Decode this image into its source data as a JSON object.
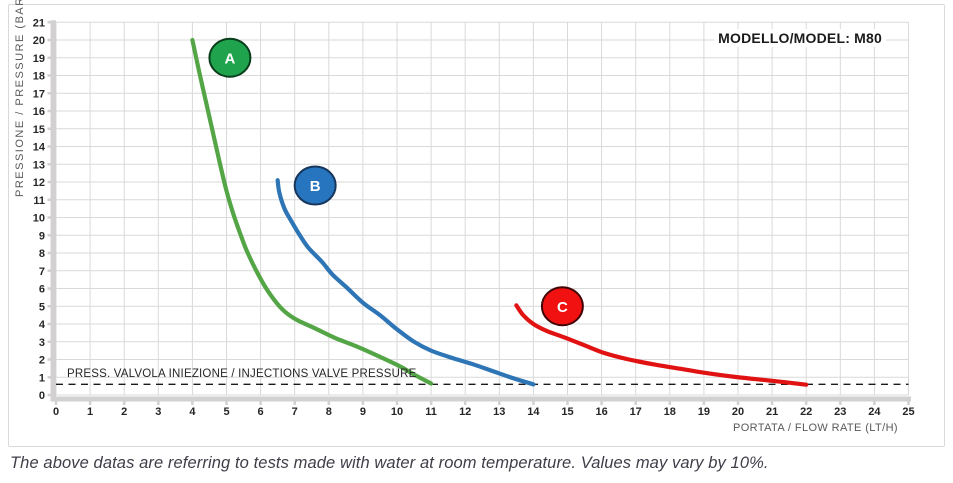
{
  "caption": "The above datas are referring to tests made with water at room temperature. Values may vary by 10%.",
  "colors": {
    "grid": "#d9d9d9",
    "axis_band": "#d2d0d0",
    "tick_text": "#262626",
    "axis_title_text": "#595959",
    "panel_border": "#d9d9d9",
    "reference_line": "#1a1a1a"
  },
  "chart_data": {
    "type": "line",
    "title": "MODELLO/MODEL: M80",
    "xlabel": "PORTATA / FLOW RATE (LT/H)",
    "ylabel": "PRESSIONE / PRESSURE (BAR)",
    "xlim": [
      0,
      25
    ],
    "ylim": [
      0,
      21
    ],
    "x_tick_step": 1,
    "y_tick_step": 1,
    "grid": true,
    "legend_position": "labels-on-curves",
    "series": [
      {
        "name": "A",
        "color": "#53a546",
        "bubble": {
          "x": 5.1,
          "y": 19.0,
          "fill": "#1fa34c",
          "stroke": "#093d1c"
        },
        "points": [
          [
            4,
            20
          ],
          [
            4.2,
            18.2
          ],
          [
            4.4,
            16.5
          ],
          [
            4.6,
            14.8
          ],
          [
            4.8,
            13.1
          ],
          [
            5.0,
            11.5
          ],
          [
            5.2,
            10.2
          ],
          [
            5.4,
            9.1
          ],
          [
            5.6,
            8.1
          ],
          [
            5.9,
            6.9
          ],
          [
            6.2,
            5.9
          ],
          [
            6.6,
            4.9
          ],
          [
            7.0,
            4.3
          ],
          [
            7.6,
            3.75
          ],
          [
            8.2,
            3.2
          ],
          [
            8.8,
            2.75
          ],
          [
            9.5,
            2.15
          ],
          [
            10.1,
            1.6
          ],
          [
            10.5,
            1.15
          ],
          [
            11,
            0.65
          ]
        ]
      },
      {
        "name": "B",
        "color": "#2e75b6",
        "bubble": {
          "x": 7.6,
          "y": 11.8,
          "fill": "#2775be",
          "stroke": "#17365c"
        },
        "points": [
          [
            6.5,
            12.1
          ],
          [
            6.55,
            11.4
          ],
          [
            6.7,
            10.5
          ],
          [
            6.9,
            9.8
          ],
          [
            7.15,
            9.0
          ],
          [
            7.4,
            8.3
          ],
          [
            7.8,
            7.5
          ],
          [
            8.1,
            6.8
          ],
          [
            8.5,
            6.1
          ],
          [
            9.0,
            5.2
          ],
          [
            9.5,
            4.5
          ],
          [
            10.0,
            3.7
          ],
          [
            10.5,
            3.0
          ],
          [
            11.0,
            2.5
          ],
          [
            11.6,
            2.1
          ],
          [
            12.2,
            1.75
          ],
          [
            12.8,
            1.35
          ],
          [
            13.4,
            0.95
          ],
          [
            14,
            0.6
          ]
        ]
      },
      {
        "name": "C",
        "color": "#e11212",
        "bubble": {
          "x": 14.85,
          "y": 5.0,
          "fill": "#f21111",
          "stroke": "#420505"
        },
        "points": [
          [
            13.5,
            5.05
          ],
          [
            13.7,
            4.5
          ],
          [
            14.0,
            4.0
          ],
          [
            14.4,
            3.6
          ],
          [
            14.9,
            3.25
          ],
          [
            15.5,
            2.8
          ],
          [
            16.1,
            2.35
          ],
          [
            16.8,
            2.0
          ],
          [
            17.6,
            1.7
          ],
          [
            18.4,
            1.45
          ],
          [
            19.2,
            1.2
          ],
          [
            20.0,
            1.0
          ],
          [
            21.0,
            0.8
          ],
          [
            22,
            0.58
          ]
        ]
      }
    ],
    "reference_line": {
      "y": 0.6,
      "style": "dashed",
      "color": "#1a1a1a",
      "label": "PRESS. VALVOLA INIEZIONE / INJECTIONS VALVE PRESSURE"
    }
  }
}
